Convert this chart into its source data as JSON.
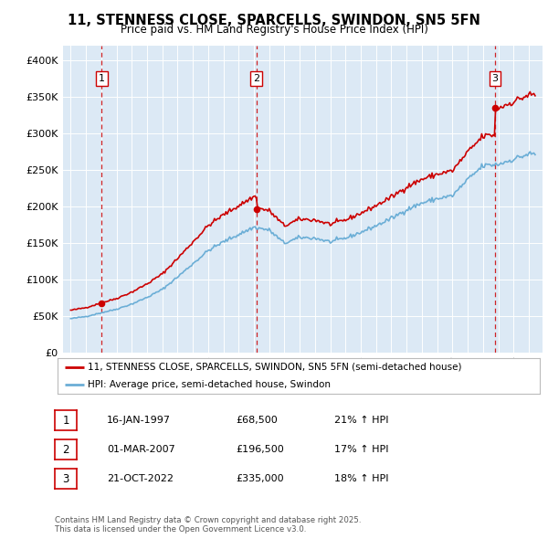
{
  "title": "11, STENNESS CLOSE, SPARCELLS, SWINDON, SN5 5FN",
  "subtitle": "Price paid vs. HM Land Registry's House Price Index (HPI)",
  "background_color": "#ffffff",
  "plot_bg_color": "#dce9f5",
  "legend_line1": "11, STENNESS CLOSE, SPARCELLS, SWINDON, SN5 5FN (semi-detached house)",
  "legend_line2": "HPI: Average price, semi-detached house, Swindon",
  "footer": "Contains HM Land Registry data © Crown copyright and database right 2025.\nThis data is licensed under the Open Government Licence v3.0.",
  "sales": [
    {
      "label": "1",
      "date": "16-JAN-1997",
      "price": 68500,
      "x": 1997.04,
      "hpi_pct": "21% ↑ HPI"
    },
    {
      "label": "2",
      "date": "01-MAR-2007",
      "price": 196500,
      "x": 2007.17,
      "hpi_pct": "17% ↑ HPI"
    },
    {
      "label": "3",
      "date": "21-OCT-2022",
      "price": 335000,
      "x": 2022.8,
      "hpi_pct": "18% ↑ HPI"
    }
  ],
  "hpi_line_color": "#6baed6",
  "price_line_color": "#cc0000",
  "vline_color": "#cc0000",
  "ylim": [
    0,
    420000
  ],
  "xlim": [
    1994.5,
    2025.9
  ],
  "yticks": [
    0,
    50000,
    100000,
    150000,
    200000,
    250000,
    300000,
    350000,
    400000
  ],
  "xticks": [
    1995,
    1996,
    1997,
    1998,
    1999,
    2000,
    2001,
    2002,
    2003,
    2004,
    2005,
    2006,
    2007,
    2008,
    2009,
    2010,
    2011,
    2012,
    2013,
    2014,
    2015,
    2016,
    2017,
    2018,
    2019,
    2020,
    2021,
    2022,
    2023,
    2024,
    2025
  ]
}
